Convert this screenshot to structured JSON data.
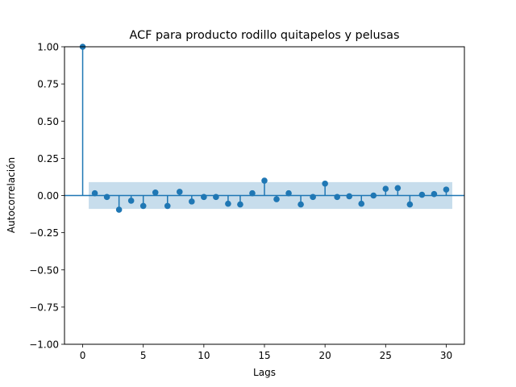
{
  "chart_data": {
    "type": "stem",
    "title": "ACF para producto rodillo quitapelos y pelusas",
    "xlabel": "Lags",
    "ylabel": "Autocorrelación",
    "xlim": [
      -1.5,
      31.5
    ],
    "ylim": [
      -1.0,
      1.0
    ],
    "xticks": [
      0,
      5,
      10,
      15,
      20,
      25,
      30
    ],
    "xtick_labels": [
      "0",
      "5",
      "10",
      "15",
      "20",
      "25",
      "30"
    ],
    "yticks": [
      -1.0,
      -0.75,
      -0.5,
      -0.25,
      0.0,
      0.25,
      0.5,
      0.75,
      1.0
    ],
    "ytick_labels": [
      "−1.00",
      "−0.75",
      "−0.50",
      "−0.25",
      "0.00",
      "0.25",
      "0.50",
      "0.75",
      "1.00"
    ],
    "grid": false,
    "lags": [
      0,
      1,
      2,
      3,
      4,
      5,
      6,
      7,
      8,
      9,
      10,
      11,
      12,
      13,
      14,
      15,
      16,
      17,
      18,
      19,
      20,
      21,
      22,
      23,
      24,
      25,
      26,
      27,
      28,
      29,
      30
    ],
    "values": [
      1.0,
      0.015,
      -0.01,
      -0.095,
      -0.035,
      -0.07,
      0.02,
      -0.07,
      0.025,
      -0.04,
      -0.01,
      -0.01,
      -0.055,
      -0.06,
      0.015,
      0.1,
      -0.025,
      0.015,
      -0.06,
      -0.01,
      0.08,
      -0.01,
      -0.005,
      -0.055,
      0.0,
      0.045,
      0.05,
      -0.06,
      0.005,
      0.01,
      0.04
    ],
    "confidence_band": {
      "x_range": [
        0.5,
        30.5
      ],
      "upper": 0.09,
      "lower": -0.09
    },
    "colors": {
      "series": "#1f77b4",
      "band": "#1f77b4",
      "band_opacity": 0.25
    }
  }
}
